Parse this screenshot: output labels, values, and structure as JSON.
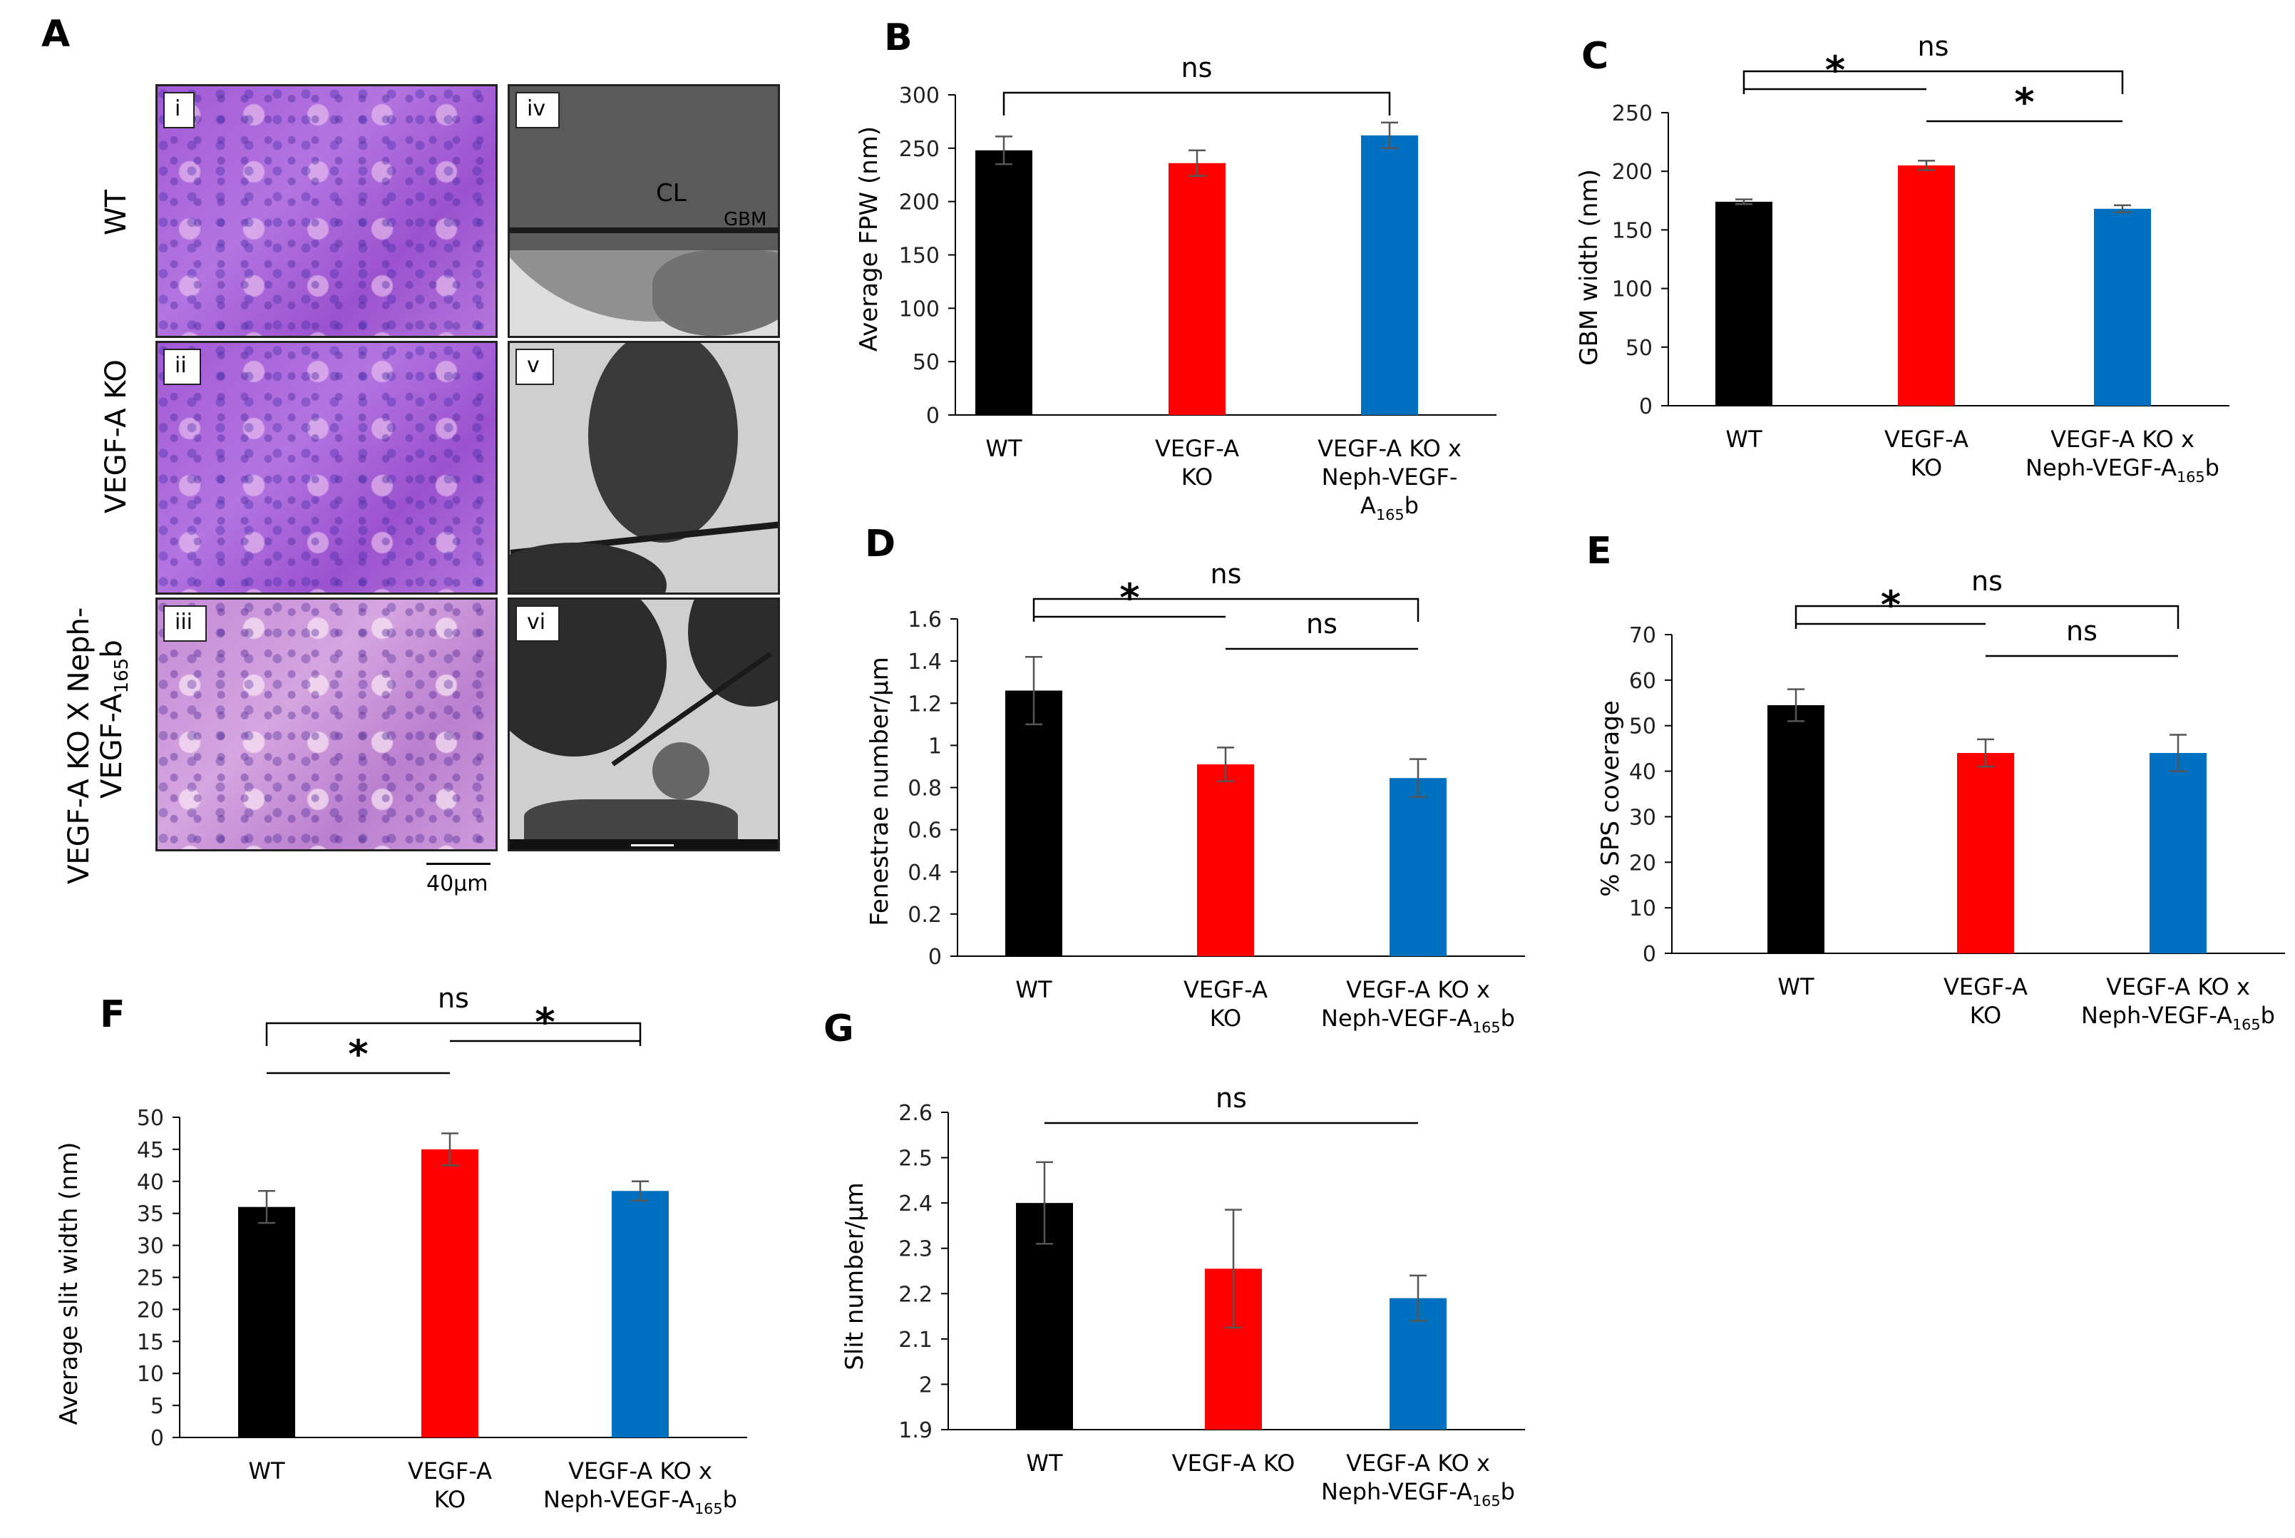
{
  "panel_a": {
    "letter": "A",
    "rows": [
      {
        "label": "WT",
        "he_tag": "i",
        "em_tag": "iv"
      },
      {
        "label": "VEGF-A KO",
        "he_tag": "ii",
        "em_tag": "v"
      },
      {
        "label_line1": "VEGF-A KO X Neph-",
        "label_line2": "VEGF-A",
        "label_sub": "165",
        "label_post": "b",
        "he_tag": "iii",
        "em_tag": "vi"
      }
    ],
    "em_labels": {
      "cl": "CL",
      "gbm": "GBM"
    },
    "scale_bar": "40μm"
  },
  "chart_data": [
    {
      "panel": "B",
      "type": "bar",
      "categories": [
        [
          "WT"
        ],
        [
          "VEGF-A",
          "KO"
        ],
        [
          "VEGF-A KO x",
          "Neph-VEGF-",
          "A|165|b"
        ]
      ],
      "values": [
        248,
        236,
        262
      ],
      "errors": [
        13,
        12,
        12
      ],
      "colors": [
        "#000000",
        "#ff0000",
        "#0070c0"
      ],
      "ylabel": "Average FPW (nm)",
      "ylim": [
        0,
        300
      ],
      "ytick_step": 50,
      "tick_decimals": 0,
      "brackets": [
        {
          "from": 0,
          "to": 2,
          "label": "ns",
          "style": "bracket",
          "level": 1
        }
      ]
    },
    {
      "panel": "C",
      "type": "bar",
      "categories": [
        [
          "WT"
        ],
        [
          "VEGF-A",
          "KO"
        ],
        [
          "VEGF-A KO x",
          "Neph-VEGF-A|165|b"
        ]
      ],
      "values": [
        174,
        205,
        168
      ],
      "errors": [
        2,
        4,
        3
      ],
      "colors": [
        "#000000",
        "#ff0000",
        "#0070c0"
      ],
      "ylabel": "GBM width (nm)",
      "ylim": [
        0,
        250
      ],
      "ytick_step": 50,
      "tick_decimals": 0,
      "brackets": [
        {
          "from": 0,
          "to": 2,
          "label": "ns",
          "style": "bracket",
          "level": 2
        },
        {
          "from": 0,
          "to": 1,
          "label": "*",
          "style": "line",
          "level": 1
        },
        {
          "from": 1,
          "to": 2,
          "label": "*",
          "style": "line",
          "level": 0
        }
      ]
    },
    {
      "panel": "D",
      "type": "bar",
      "categories": [
        [
          "WT"
        ],
        [
          "VEGF-A",
          "KO"
        ],
        [
          "VEGF-A KO x",
          "Neph-VEGF-A|165|b"
        ]
      ],
      "values": [
        1.26,
        0.91,
        0.845
      ],
      "errors": [
        0.16,
        0.08,
        0.09
      ],
      "colors": [
        "#000000",
        "#ff0000",
        "#0070c0"
      ],
      "ylabel": "Fenestrae number/µm",
      "ylim": [
        0,
        1.6
      ],
      "ytick_step": 0.2,
      "tick_decimals": 1,
      "brackets": [
        {
          "from": 0,
          "to": 2,
          "label": "ns",
          "style": "bracket",
          "level": 2
        },
        {
          "from": 0,
          "to": 1,
          "label": "*",
          "style": "line",
          "level": 1
        },
        {
          "from": 1,
          "to": 2,
          "label": "ns",
          "style": "line",
          "level": 0
        }
      ]
    },
    {
      "panel": "E",
      "type": "bar",
      "categories": [
        [
          "WT"
        ],
        [
          "VEGF-A",
          "KO"
        ],
        [
          "VEGF-A KO x",
          "Neph-VEGF-A|165|b"
        ]
      ],
      "values": [
        54.5,
        44,
        44
      ],
      "errors": [
        3.5,
        3,
        4
      ],
      "colors": [
        "#000000",
        "#ff0000",
        "#0070c0"
      ],
      "ylabel": "% SPS coverage",
      "ylim": [
        0,
        70
      ],
      "ytick_step": 10,
      "tick_decimals": 0,
      "brackets": [
        {
          "from": 0,
          "to": 2,
          "label": "ns",
          "style": "bracket",
          "level": 2
        },
        {
          "from": 0,
          "to": 1,
          "label": "*",
          "style": "line",
          "level": 1
        },
        {
          "from": 1,
          "to": 2,
          "label": "ns",
          "style": "line",
          "level": 0
        }
      ]
    },
    {
      "panel": "F",
      "type": "bar",
      "categories": [
        [
          "WT"
        ],
        [
          "VEGF-A",
          "KO"
        ],
        [
          "VEGF-A KO x",
          "Neph-VEGF-A|165|b"
        ]
      ],
      "values": [
        36,
        45,
        38.5
      ],
      "errors": [
        2.5,
        2.5,
        1.5
      ],
      "colors": [
        "#000000",
        "#ff0000",
        "#0070c0"
      ],
      "ylabel": "Average slit width (nm)",
      "ylim": [
        0,
        50
      ],
      "ytick_step": 5,
      "tick_decimals": 0,
      "brackets": [
        {
          "from": 0,
          "to": 2,
          "label": "ns",
          "style": "bracket",
          "level": 2
        },
        {
          "from": 1,
          "to": 2,
          "label": "*",
          "style": "line",
          "level": 1
        },
        {
          "from": 0,
          "to": 1,
          "label": "*",
          "style": "line",
          "level": 0
        }
      ]
    },
    {
      "panel": "G",
      "type": "bar",
      "categories": [
        [
          "WT"
        ],
        [
          "VEGF-A KO"
        ],
        [
          "VEGF-A KO x",
          "Neph-VEGF-A|165|b"
        ]
      ],
      "values": [
        2.4,
        2.255,
        2.19
      ],
      "errors": [
        0.09,
        0.13,
        0.05
      ],
      "colors": [
        "#000000",
        "#ff0000",
        "#0070c0"
      ],
      "ylabel": "Slit number/µm",
      "ylim": [
        1.9,
        2.6
      ],
      "ytick_step": 0.1,
      "tick_decimals": 1,
      "brackets": [
        {
          "from": 0,
          "to": 2,
          "label": "ns",
          "style": "line",
          "level": 0
        }
      ]
    }
  ]
}
